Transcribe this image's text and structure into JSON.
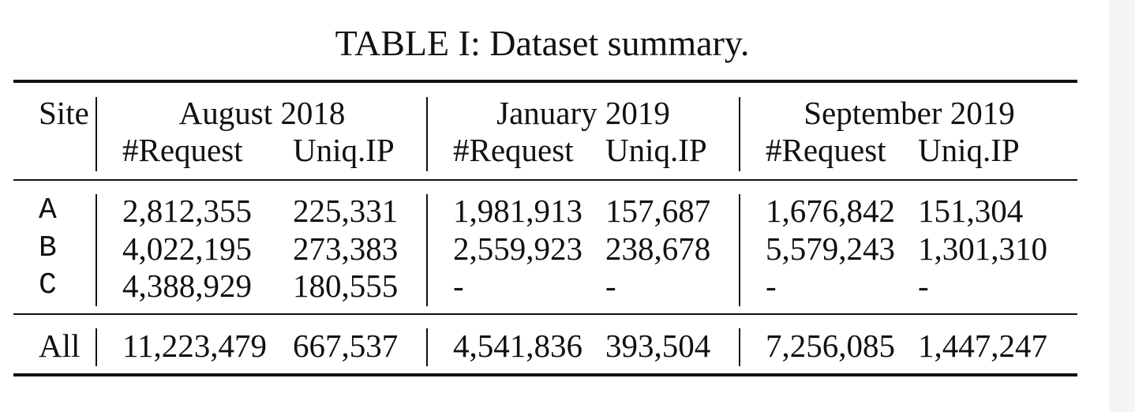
{
  "caption": "TABLE I: Dataset summary.",
  "header": {
    "site": "Site",
    "periods": [
      {
        "label": "August 2018",
        "col1": "#Request",
        "col2": "Uniq.IP"
      },
      {
        "label": "January 2019",
        "col1": "#Request",
        "col2": "Uniq.IP"
      },
      {
        "label": "September 2019",
        "col1": "#Request",
        "col2": "Uniq.IP"
      }
    ]
  },
  "rows": [
    {
      "site": "A",
      "values": [
        "2,812,355",
        "225,331",
        "1,981,913",
        "157,687",
        "1,676,842",
        "151,304"
      ]
    },
    {
      "site": "B",
      "values": [
        "4,022,195",
        "273,383",
        "2,559,923",
        "238,678",
        "5,579,243",
        "1,301,310"
      ]
    },
    {
      "site": "C",
      "values": [
        "4,388,929",
        "180,555",
        "-",
        "-",
        "-",
        "-"
      ]
    }
  ],
  "total": {
    "site": "All",
    "values": [
      "11,223,479",
      "667,537",
      "4,541,836",
      "393,504",
      "7,256,085",
      "1,447,247"
    ]
  }
}
